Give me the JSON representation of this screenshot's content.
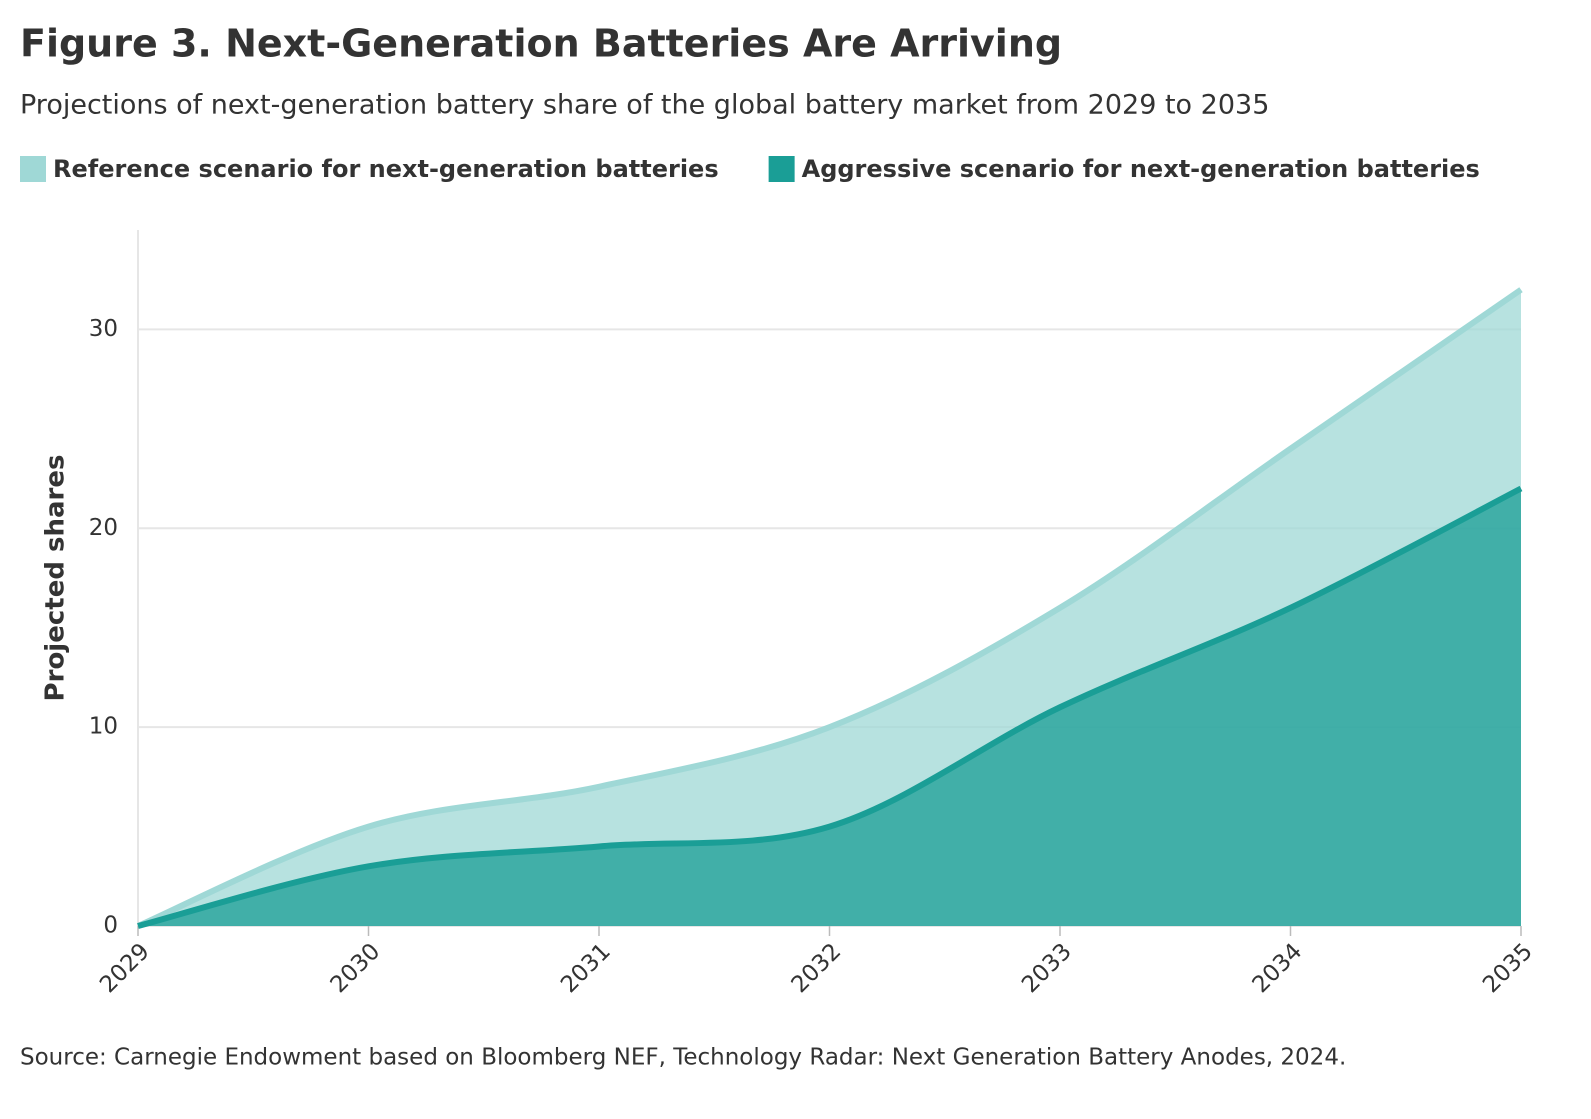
{
  "chart_data": {
    "type": "area",
    "title": "Figure 3. Next-Generation Batteries Are Arriving",
    "subtitle": "Projections of next-generation battery share of the global battery market from 2029 to 2035",
    "y_label": "Projected shares",
    "source": "Source: Carnegie Endowment based on Bloomberg NEF, Technology Radar: Next Generation Battery Anodes, 2024.",
    "x": [
      2029,
      2030,
      2031,
      2032,
      2033,
      2034,
      2035
    ],
    "series": [
      {
        "name": "Reference scenario for next-generation batteries",
        "color": "#9fd8d6",
        "values": [
          0,
          5,
          7,
          10,
          16,
          24,
          32
        ]
      },
      {
        "name": "Aggressive scenario for next-generation batteries",
        "color": "#1a9e96",
        "values": [
          0,
          3,
          4,
          5,
          11,
          16,
          22
        ]
      }
    ],
    "xlim": [
      2029,
      2035
    ],
    "xticks": [
      2029,
      2030,
      2031,
      2032,
      2033,
      2034,
      2035
    ],
    "ylim": [
      0,
      35
    ],
    "yticks": [
      0,
      10,
      20,
      30
    ],
    "grid": true
  }
}
